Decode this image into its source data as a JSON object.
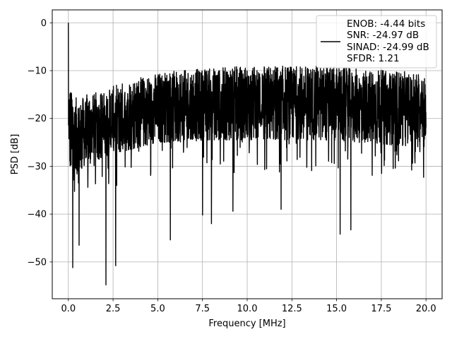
{
  "chart_data": {
    "type": "line",
    "title": "",
    "xlabel": "Frequency [MHz]",
    "ylabel": "PSD [dB]",
    "xlim": [
      -0.9,
      20.9
    ],
    "ylim": [
      -57.7,
      2.7
    ],
    "xticks": [
      0.0,
      2.5,
      5.0,
      7.5,
      10.0,
      12.5,
      15.0,
      17.5,
      20.0
    ],
    "xtick_labels": [
      "0.0",
      "2.5",
      "5.0",
      "7.5",
      "10.0",
      "12.5",
      "15.0",
      "17.5",
      "20.0"
    ],
    "yticks": [
      0,
      -10,
      -20,
      -30,
      -40,
      -50
    ],
    "ytick_labels": [
      "0",
      "−10",
      "−20",
      "−30",
      "−40",
      "−50"
    ],
    "grid": true,
    "legend": {
      "placement": "top-right",
      "entries": [
        "ENOB: -4.44 bits",
        "SNR: -24.97 dB",
        "SINAD: -24.99 dB",
        "SFDR: 1.21"
      ]
    },
    "series": [
      {
        "color": "#000000",
        "x_range": [
          0,
          20
        ],
        "peak": {
          "x": 0.0,
          "y": 0.0
        },
        "upper_envelope": {
          "x": [
            0,
            0.5,
            1,
            2,
            3,
            4,
            5,
            6,
            8,
            10,
            12,
            14,
            16,
            18,
            20
          ],
          "y": [
            -13,
            -16,
            -15,
            -14,
            -12.5,
            -11.5,
            -10.5,
            -10,
            -9.5,
            -9,
            -9,
            -9,
            -9.5,
            -10,
            -10.5
          ]
        },
        "lower_envelope": {
          "x": [
            0,
            0.5,
            1,
            2,
            3,
            4,
            5,
            6,
            8,
            10,
            12,
            14,
            16,
            18,
            20
          ],
          "y": [
            -30,
            -32,
            -30,
            -28,
            -27,
            -26,
            -25,
            -25,
            -24.5,
            -24.5,
            -24.5,
            -24.5,
            -25,
            -25.5,
            -26
          ]
        },
        "notable_dips": [
          {
            "x": 0.25,
            "y": -51.2
          },
          {
            "x": 0.6,
            "y": -46.5
          },
          {
            "x": 2.1,
            "y": -54.8
          },
          {
            "x": 2.65,
            "y": -50.8
          },
          {
            "x": 5.7,
            "y": -45.4
          },
          {
            "x": 7.5,
            "y": -40.2
          },
          {
            "x": 8.0,
            "y": -42.0
          },
          {
            "x": 9.2,
            "y": -39.4
          },
          {
            "x": 11.9,
            "y": -39.0
          },
          {
            "x": 15.2,
            "y": -44.2
          },
          {
            "x": 15.8,
            "y": -43.3
          }
        ]
      }
    ]
  }
}
